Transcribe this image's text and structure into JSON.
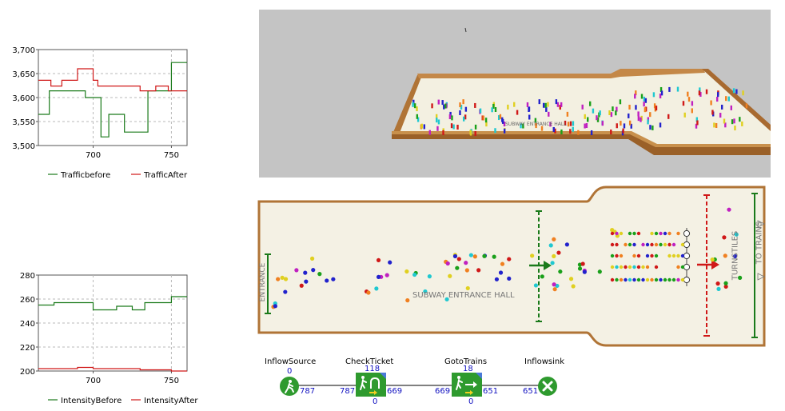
{
  "colors": {
    "series_before": "#1a7a1a",
    "series_after": "#d01818",
    "hall_floor": "#f4f1e4",
    "hall_wall": "#b07436",
    "view3d_bg": "#c4c4c4",
    "block_green": "#2e9a2e",
    "counter_blue": "#1010c0"
  },
  "chart_data": [
    {
      "type": "line",
      "title": "",
      "xlabel": "",
      "ylabel": "",
      "xlim": [
        665,
        760
      ],
      "ylim": [
        3500,
        3700
      ],
      "xticks": [
        700,
        750
      ],
      "yticks": [
        3500,
        3550,
        3600,
        3650,
        3700
      ],
      "ytick_labels": [
        "3,500",
        "3,550",
        "3,600",
        "3,650",
        "3,700"
      ],
      "grid": true,
      "legend": "bottom",
      "series": [
        {
          "name": "Trafficbefore",
          "step": true,
          "x": [
            665,
            672,
            695,
            705,
            710,
            720,
            735,
            750,
            760
          ],
          "y": [
            3565,
            3614,
            3600,
            3518,
            3565,
            3528,
            3614,
            3673,
            3673
          ]
        },
        {
          "name": "TrafficAfter",
          "step": true,
          "x": [
            665,
            673,
            680,
            690,
            700,
            703,
            730,
            740,
            748,
            760
          ],
          "y": [
            3636,
            3624,
            3636,
            3660,
            3636,
            3624,
            3614,
            3624,
            3614,
            3614
          ]
        }
      ]
    },
    {
      "type": "line",
      "title": "",
      "xlabel": "",
      "ylabel": "",
      "xlim": [
        665,
        760
      ],
      "ylim": [
        200,
        280
      ],
      "xticks": [
        700,
        750
      ],
      "yticks": [
        200,
        220,
        240,
        260,
        280
      ],
      "ytick_labels": [
        "200",
        "220",
        "240",
        "260",
        "280"
      ],
      "grid": true,
      "legend": "bottom",
      "series": [
        {
          "name": "IntensityBefore",
          "step": true,
          "x": [
            665,
            675,
            700,
            707,
            715,
            725,
            733,
            750,
            760
          ],
          "y": [
            255,
            257,
            251,
            251,
            254,
            251,
            257,
            262,
            262
          ]
        },
        {
          "name": "IntensityAfter",
          "step": true,
          "x": [
            665,
            690,
            700,
            730,
            750,
            760
          ],
          "y": [
            202,
            203,
            202,
            201,
            200,
            200
          ]
        }
      ]
    }
  ],
  "view3d": {
    "hall_label": "SUBWAY ENTRANCE HALL"
  },
  "plan2d": {
    "hall_label": "SUBWAY ENTRANCE HALL",
    "entrance_label": "ENTRANCE",
    "turnstiles_label": "TURNSTILES",
    "to_trains_label": "TO TRAINS"
  },
  "flowchart": {
    "blocks": [
      {
        "name": "InflowSource",
        "top": "0",
        "in": "",
        "out": "787",
        "bottom": "",
        "icon": "walking-person-icon"
      },
      {
        "name": "CheckTicket",
        "top": "118",
        "in": "787",
        "out": "669",
        "bottom": "0",
        "icon": "ticket-check-icon"
      },
      {
        "name": "GotoTrains",
        "top": "18",
        "in": "669",
        "out": "651",
        "bottom": "0",
        "icon": "goto-arrow-icon"
      },
      {
        "name": "Inflowsink",
        "top": "",
        "in": "651",
        "out": "",
        "bottom": "",
        "icon": "sink-x-icon"
      }
    ]
  }
}
